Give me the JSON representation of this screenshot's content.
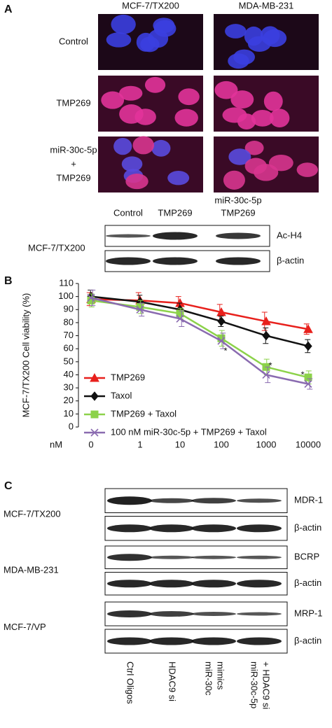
{
  "panel_a": {
    "label": "A",
    "columns": [
      "MCF-7/TX200",
      "MDA-MB-231"
    ],
    "rows": [
      [
        "Control"
      ],
      [
        "TMP269"
      ],
      [
        "miR-30c-5p",
        "+",
        "TMP269"
      ]
    ],
    "blot": {
      "lanes": [
        [
          "Control"
        ],
        [
          "TMP269"
        ],
        [
          "miR-30c-5p",
          "TMP269"
        ]
      ],
      "cell_line": "MCF-7/TX200",
      "proteins": [
        "Ac-H4",
        "β-actin"
      ]
    }
  },
  "chart_data": {
    "type": "line",
    "label": "B",
    "y_label": "MCF-7/TX200  Cell viability (%)",
    "x_label": "nM",
    "categories": [
      "0",
      "1",
      "10",
      "100",
      "1000",
      "10000"
    ],
    "ylim": [
      0,
      110
    ],
    "yticks": [
      0,
      10,
      20,
      30,
      40,
      50,
      60,
      70,
      80,
      90,
      100,
      110
    ],
    "series": [
      {
        "name": "TMP269",
        "color": "#e8201c",
        "marker": "triangle",
        "values": [
          98,
          97,
          95,
          88,
          81,
          75
        ],
        "errors": [
          5,
          6,
          5,
          6,
          7,
          4
        ]
      },
      {
        "name": "Taxol",
        "color": "#111111",
        "marker": "diamond",
        "values": [
          100,
          96,
          90,
          81,
          70,
          62
        ],
        "errors": [
          5,
          5,
          5,
          4,
          6,
          5
        ]
      },
      {
        "name": "TMP269 + Taxol",
        "color": "#8cd24a",
        "marker": "square",
        "values": [
          97,
          92,
          87,
          68,
          46,
          38
        ],
        "errors": [
          5,
          5,
          4,
          6,
          6,
          5
        ]
      },
      {
        "name": "100 nM miR-30c-5p + TMP269 + Taxol",
        "color": "#8a6bb0",
        "marker": "x",
        "values": [
          99,
          90,
          83,
          66,
          40,
          33
        ],
        "errors": [
          6,
          5,
          6,
          6,
          6,
          4
        ]
      }
    ],
    "annotations": [
      "*",
      "*",
      "*"
    ]
  },
  "panel_c": {
    "label": "C",
    "lanes": [
      [
        "Ctrl Oligos"
      ],
      [
        "HDAC9 si"
      ],
      [
        "miR-30c",
        "mimics"
      ],
      [
        "miR-30c-5p",
        "+ HDAC9 si"
      ]
    ],
    "blots": [
      {
        "cell_line": "MCF-7/TX200",
        "proteins": [
          "MDR-1",
          "β-actin"
        ]
      },
      {
        "cell_line": "MDA-MB-231",
        "proteins": [
          "BCRP",
          "β-actin"
        ]
      },
      {
        "cell_line": "MCF-7/VP",
        "proteins": [
          "MRP-1",
          "β-actin"
        ]
      }
    ]
  }
}
